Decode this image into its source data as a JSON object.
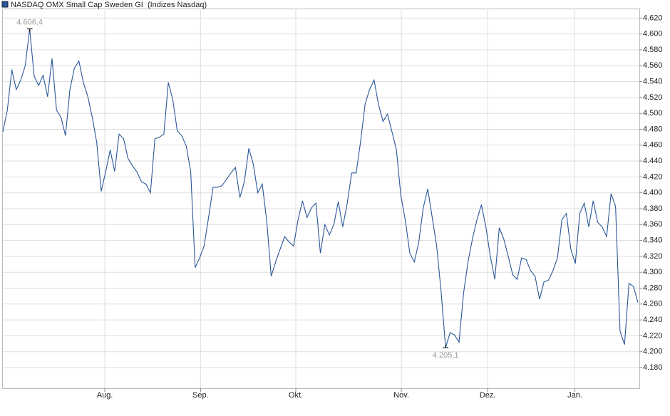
{
  "chart_data": {
    "type": "line",
    "series": [
      {
        "name": "NASDAQ OMX Small Cap Sweden GI  (Indizes Nasdaq)",
        "color": "#2a5699",
        "values": [
          4477,
          4504,
          4555,
          4530,
          4542,
          4560,
          4606.4,
          4547,
          4535,
          4548,
          4521,
          4569,
          4504,
          4495,
          4472,
          4530,
          4557,
          4566,
          4539,
          4521,
          4495,
          4463,
          4402,
          4427,
          4454,
          4427,
          4474,
          4468,
          4443,
          4434,
          4426,
          4414,
          4411,
          4400,
          4468,
          4470,
          4474,
          4539,
          4517,
          4478,
          4472,
          4459,
          4427,
          4306,
          4318,
          4333,
          4369,
          4407,
          4407,
          4409,
          4417,
          4425,
          4432,
          4394,
          4414,
          4456,
          4436,
          4400,
          4411,
          4365,
          4295,
          4313,
          4329,
          4345,
          4338,
          4333,
          4366,
          4390,
          4369,
          4381,
          4387,
          4324,
          4360,
          4347,
          4360,
          4389,
          4357,
          4387,
          4425,
          4425,
          4465,
          4512,
          4530,
          4542,
          4511,
          4490,
          4499,
          4477,
          4454,
          4396,
          4365,
          4324,
          4313,
          4338,
          4381,
          4405,
          4369,
          4333,
          4275,
          4205.1,
          4224,
          4221,
          4212,
          4273,
          4313,
          4342,
          4366,
          4385,
          4357,
          4320,
          4291,
          4356,
          4342,
          4320,
          4297,
          4291,
          4318,
          4316,
          4302,
          4295,
          4266,
          4288,
          4290,
          4302,
          4318,
          4366,
          4374,
          4329,
          4311,
          4374,
          4387,
          4357,
          4390,
          4363,
          4357,
          4345,
          4399,
          4383,
          4226,
          4209,
          4286,
          4282,
          4262
        ]
      }
    ],
    "annotations": [
      {
        "label": "4.606,4",
        "value": 4606.4
      },
      {
        "label": "4.205,1",
        "value": 4205.1
      }
    ],
    "xlim": [
      0,
      142
    ],
    "xticks": [
      {
        "value": 22.8,
        "label": "Aug."
      },
      {
        "value": 44.2,
        "label": "Sep."
      },
      {
        "value": 65.5,
        "label": "Okt."
      },
      {
        "value": 89.1,
        "label": "Nov."
      },
      {
        "value": 108.4,
        "label": "Dez."
      },
      {
        "value": 127.9,
        "label": "Jan."
      }
    ],
    "ylim": [
      4154,
      4632
    ],
    "yticks": [
      {
        "value": 4180,
        "label": "4.180"
      },
      {
        "value": 4200,
        "label": "4.200"
      },
      {
        "value": 4220,
        "label": "4.220"
      },
      {
        "value": 4240,
        "label": "4.240"
      },
      {
        "value": 4260,
        "label": "4.260"
      },
      {
        "value": 4280,
        "label": "4.280"
      },
      {
        "value": 4300,
        "label": "4.300"
      },
      {
        "value": 4320,
        "label": "4.320"
      },
      {
        "value": 4340,
        "label": "4.340"
      },
      {
        "value": 4360,
        "label": "4.360"
      },
      {
        "value": 4380,
        "label": "4.380"
      },
      {
        "value": 4400,
        "label": "4.400"
      },
      {
        "value": 4420,
        "label": "4.420"
      },
      {
        "value": 4440,
        "label": "4.440"
      },
      {
        "value": 4460,
        "label": "4.460"
      },
      {
        "value": 4480,
        "label": "4.480"
      },
      {
        "value": 4500,
        "label": "4.500"
      },
      {
        "value": 4520,
        "label": "4.520"
      },
      {
        "value": 4540,
        "label": "4.540"
      },
      {
        "value": 4560,
        "label": "4.560"
      },
      {
        "value": 4580,
        "label": "4.580"
      },
      {
        "value": 4600,
        "label": "4.600"
      },
      {
        "value": 4620,
        "label": "4.620"
      }
    ],
    "grid": true
  }
}
